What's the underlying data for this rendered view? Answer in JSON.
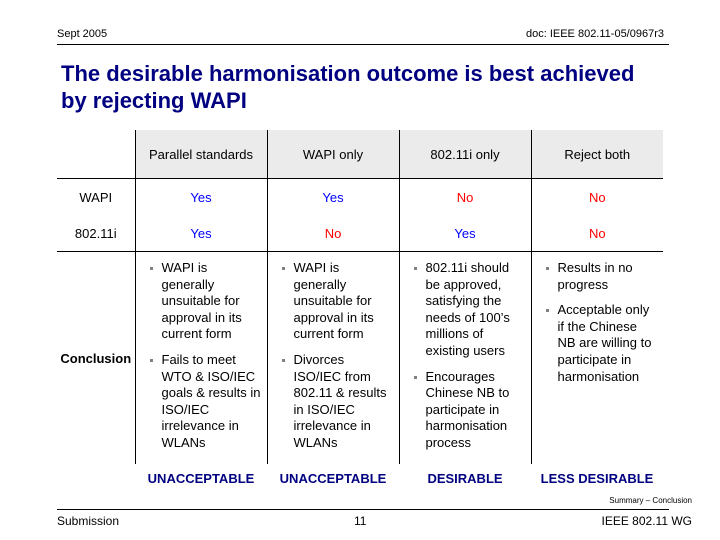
{
  "header": {
    "date": "Sept 2005",
    "doc": "doc: IEEE 802.11-05/0967r3"
  },
  "title": "The desirable harmonisation outcome is best achieved by rejecting WAPI",
  "table": {
    "columns": [
      "Parallel standards",
      "WAPI only",
      "802.11i only",
      "Reject both"
    ],
    "rows": [
      {
        "label": "WAPI",
        "cells": [
          "Yes",
          "Yes",
          "No",
          "No"
        ]
      },
      {
        "label": "802.11i",
        "cells": [
          "Yes",
          "No",
          "Yes",
          "No"
        ]
      }
    ],
    "conclusion_label": "Conclusion",
    "conclusions": [
      [
        "WAPI is generally unsuitable for approval in its current form",
        "Fails to meet WTO & ISO/IEC goals & results in ISO/IEC irrelevance in WLANs"
      ],
      [
        "WAPI is generally unsuitable for approval in its current form",
        "Divorces ISO/IEC from 802.11 & results in ISO/IEC irrelevance in WLANs"
      ],
      [
        "802.11i should be approved, satisfying the needs of 100’s millions of existing users",
        "Encourages Chinese NB to participate in harmonisation process"
      ],
      [
        "Results in no progress",
        "Acceptable only if the Chinese NB are willing to participate in harmonisation"
      ]
    ],
    "verdicts": [
      "UNACCEPTABLE",
      "UNACCEPTABLE",
      "DESIRABLE",
      "LESS DESIRABLE"
    ]
  },
  "footer": {
    "note": "Summary – Conclusion",
    "left": "Submission",
    "page": "11",
    "right": "IEEE 802.11 WG"
  },
  "colors": {
    "title": "#000080",
    "yes": "#0000ff",
    "no": "#ff0000",
    "header_bg": "#ebebeb"
  }
}
